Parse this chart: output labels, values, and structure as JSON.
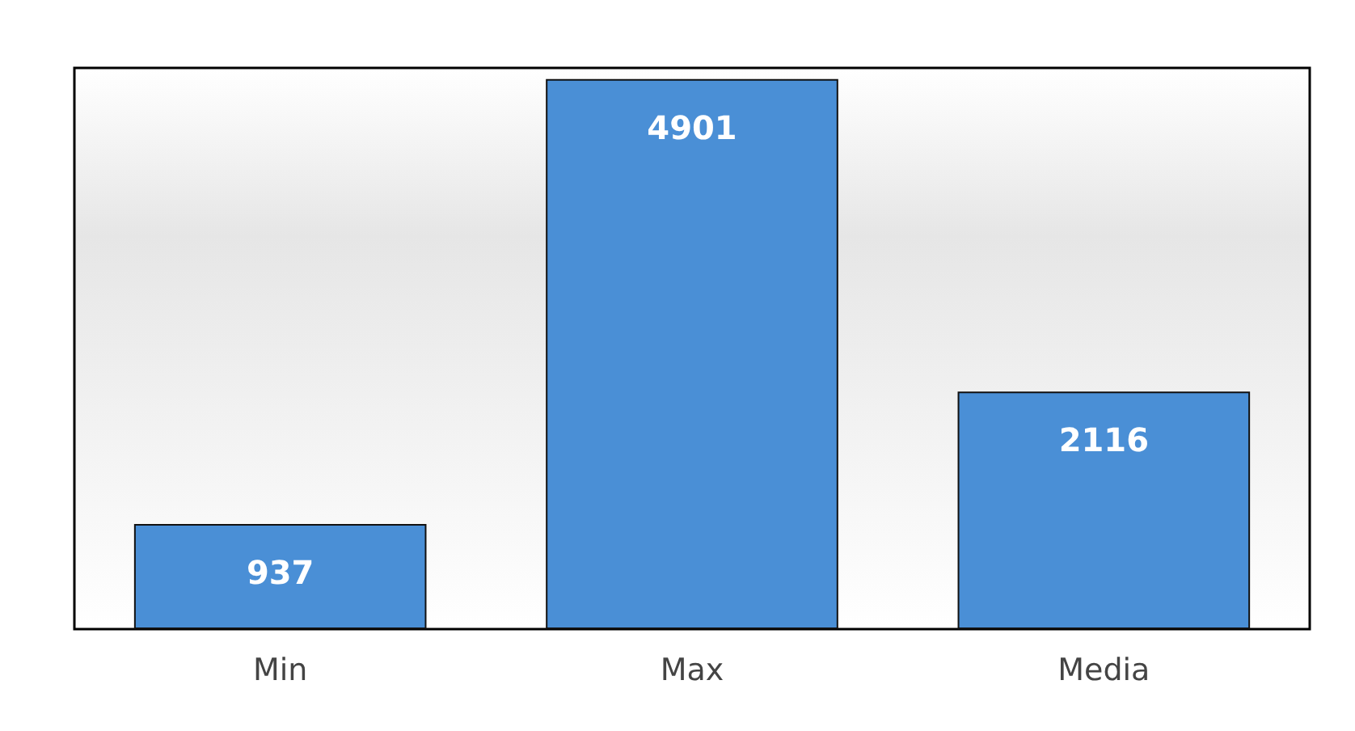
{
  "chart_data": {
    "type": "bar",
    "categories": [
      "Min",
      "Max",
      "Media"
    ],
    "values": [
      937,
      4901,
      2116
    ],
    "color": "#4a8fd6",
    "data_labels": true
  }
}
